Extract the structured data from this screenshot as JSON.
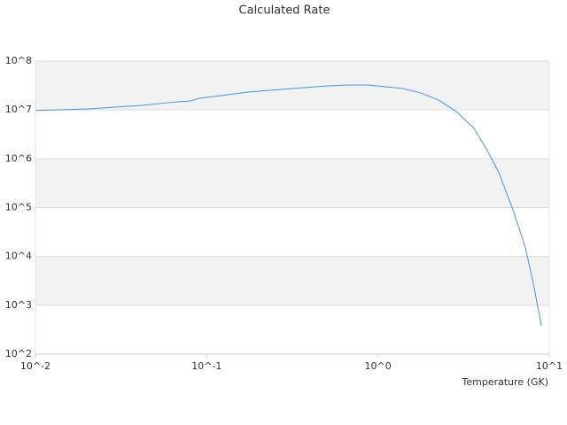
{
  "chart_data": {
    "type": "line",
    "title": "Calculated Rate",
    "x_label": "Temperature (GK)",
    "x": [
      0.01,
      0.0204,
      0.0292,
      0.0418,
      0.0673,
      0.0804,
      0.0906,
      0.1744,
      0.316,
      0.509,
      0.687,
      0.871,
      1.105,
      1.4,
      1.78,
      2.26,
      2.87,
      3.64,
      4.35,
      5.08,
      6.22,
      7.26,
      8.07,
      9.0
    ],
    "values": [
      9700000,
      10500000,
      11400000,
      12400000,
      14700000,
      15300000,
      17300000,
      23200000,
      27400000,
      31100000,
      32400000,
      32400000,
      29800000,
      27400000,
      22200000,
      15900000,
      9270000,
      4190000,
      1470000,
      520000,
      79000,
      15000,
      2800,
      380
    ],
    "color": "#4a90e2",
    "xscale": "log",
    "yscale": "log",
    "grid": true,
    "bands": true,
    "xlim": [
      0.01,
      10
    ],
    "ylim": [
      100,
      100000000
    ],
    "xticks": [
      {
        "value": 0.01,
        "label": "10^-2"
      },
      {
        "value": 0.1,
        "label": "10^-1"
      },
      {
        "value": 1,
        "label": "10^0"
      },
      {
        "value": 10,
        "label": "10^1"
      }
    ],
    "yticks": [
      {
        "value": 100,
        "label": "10^2"
      },
      {
        "value": 1000,
        "label": "10^3"
      },
      {
        "value": 10000,
        "label": "10^4"
      },
      {
        "value": 100000,
        "label": "10^5"
      },
      {
        "value": 1000000,
        "label": "10^6"
      },
      {
        "value": 10000000,
        "label": "10^7"
      },
      {
        "value": 100000000,
        "label": "10^8"
      }
    ]
  }
}
